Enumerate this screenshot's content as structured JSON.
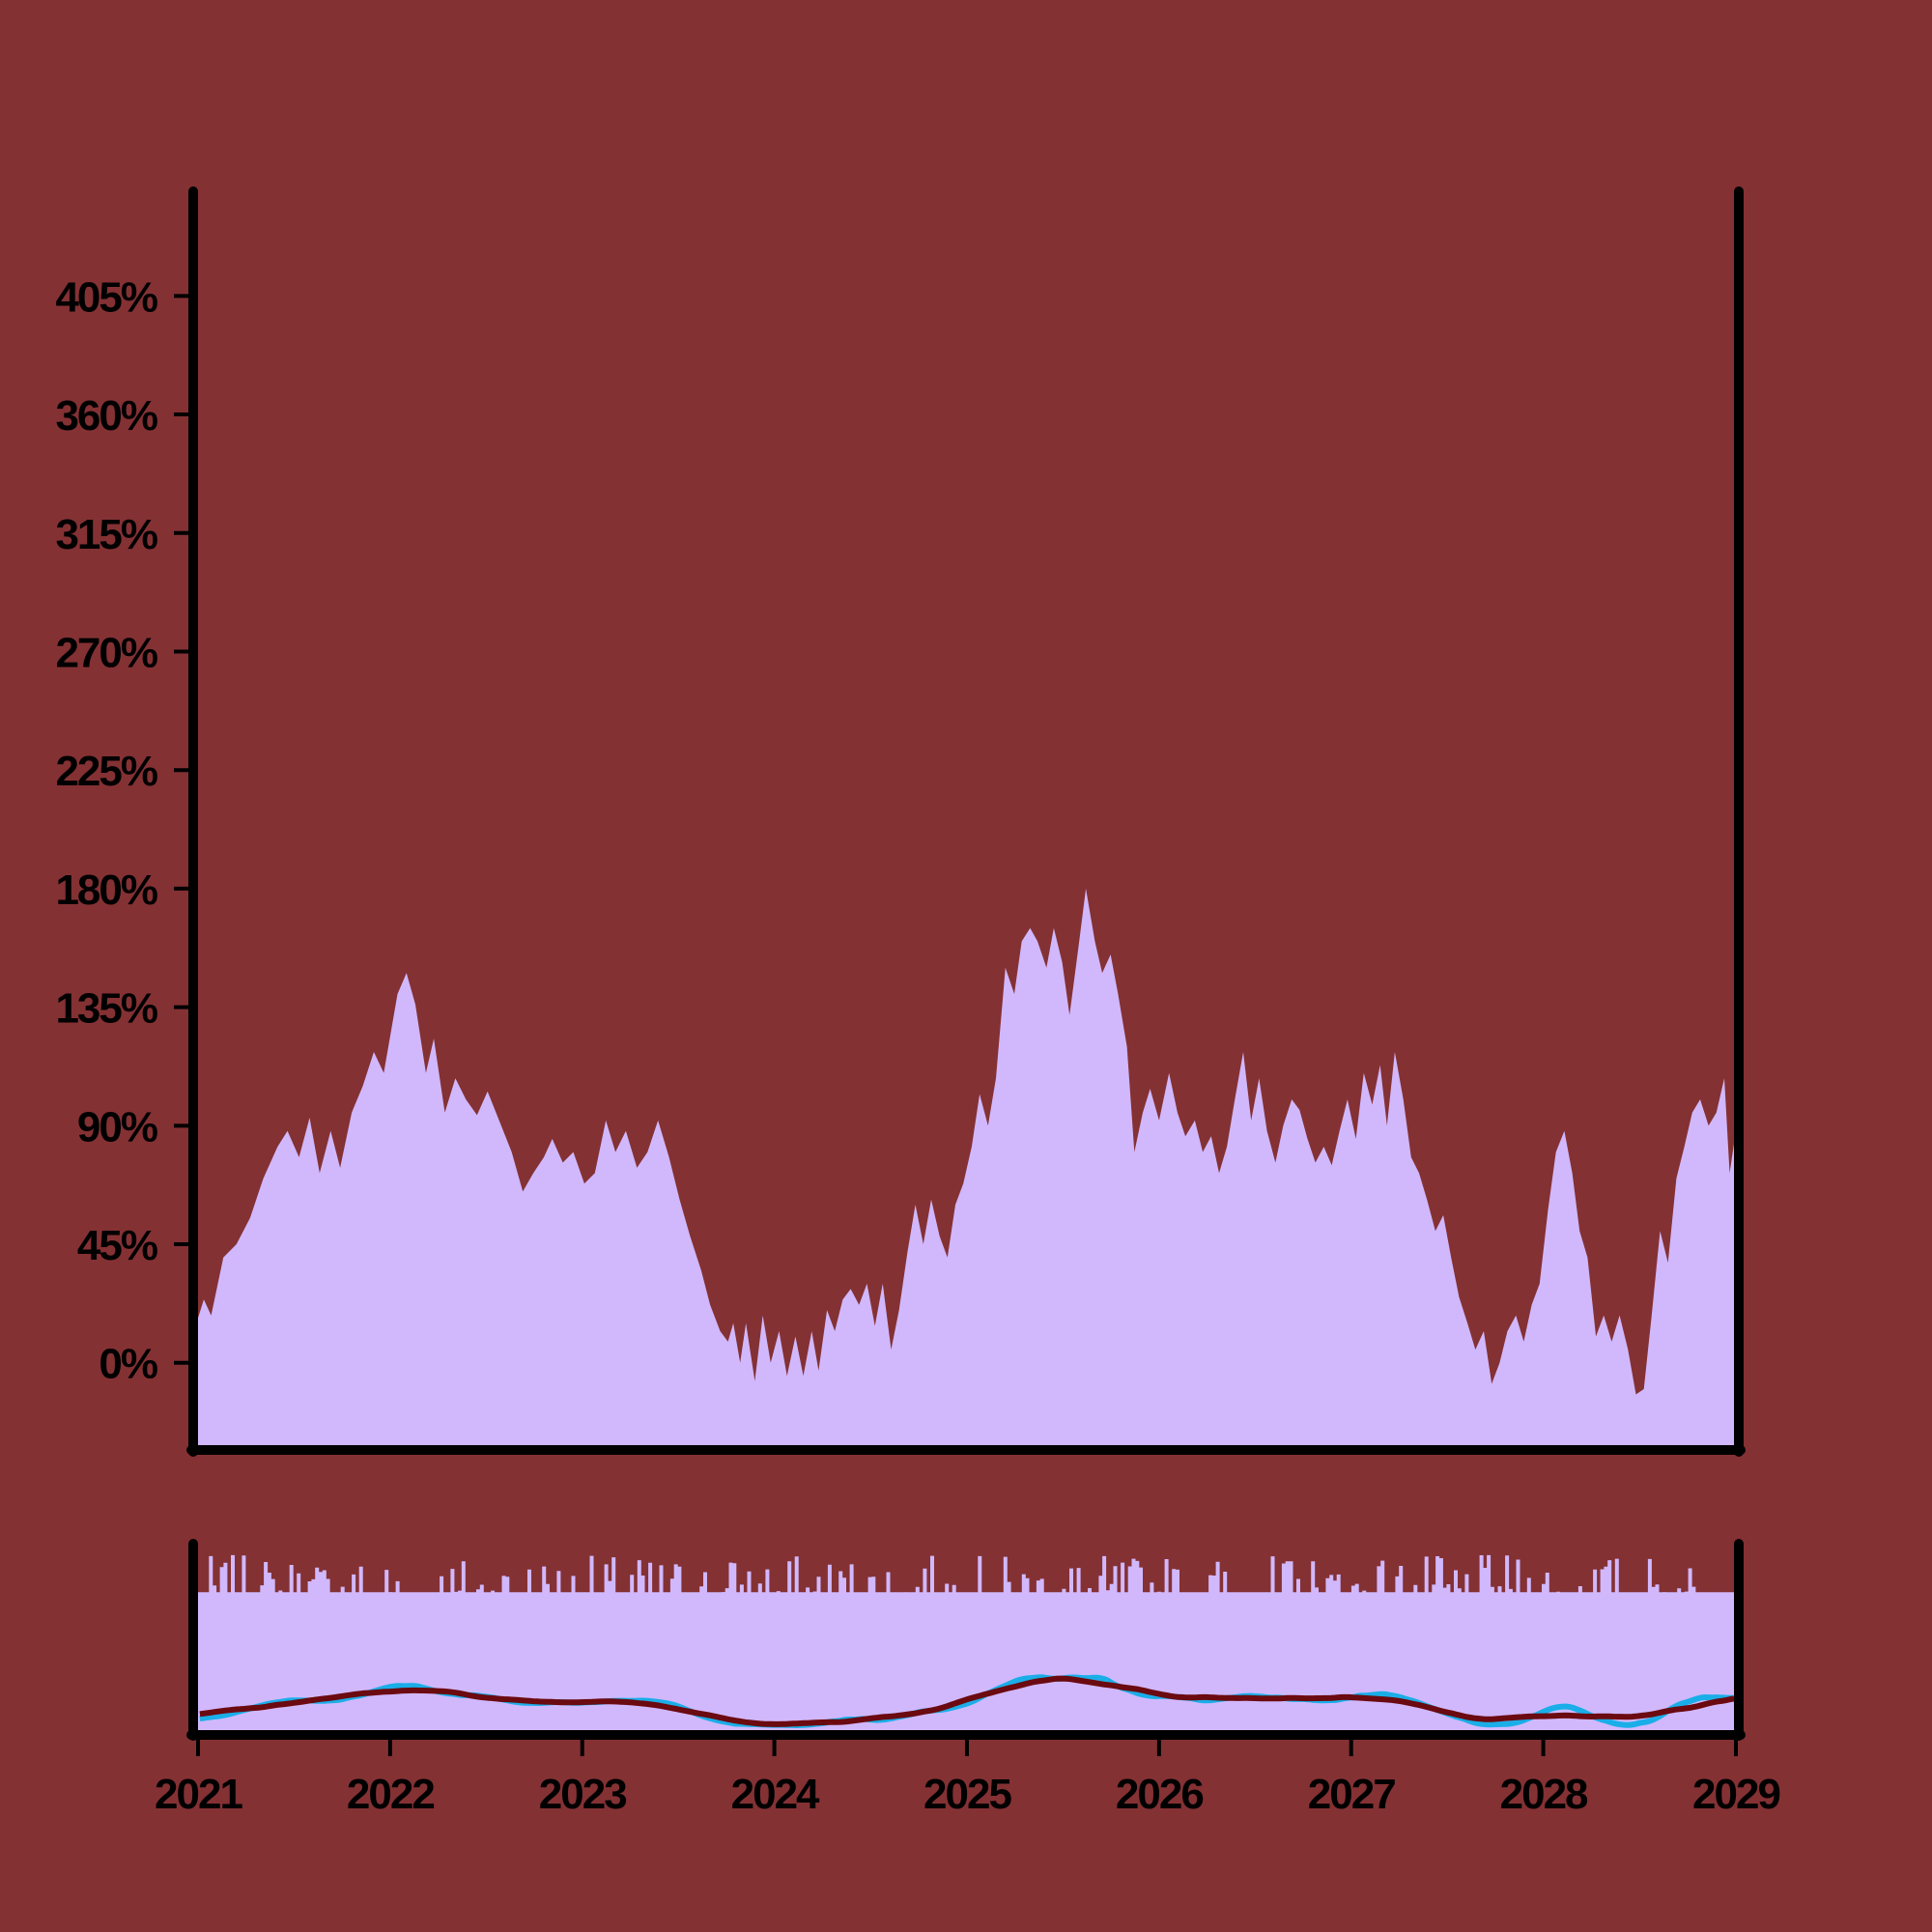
{
  "chart_data": {
    "type": "area",
    "title": "",
    "xlabel": "",
    "ylabel": "",
    "background_color": "#843134",
    "area_color": "#d1b8fc",
    "axis_color": "#000000",
    "ma_fast_color": "#1aaee8",
    "ma_slow_color": "#6b0a10",
    "xlim": [
      "2021-01-01",
      "2029-01-01"
    ],
    "ylim": [
      -32,
      444
    ],
    "y_ticks": [
      {
        "value": 0,
        "label": "0%"
      },
      {
        "value": 45,
        "label": "45%"
      },
      {
        "value": 90,
        "label": "90%"
      },
      {
        "value": 135,
        "label": "135%"
      },
      {
        "value": 180,
        "label": "180%"
      },
      {
        "value": 225,
        "label": "225%"
      },
      {
        "value": 270,
        "label": "270%"
      },
      {
        "value": 315,
        "label": "315%"
      },
      {
        "value": 360,
        "label": "360%"
      },
      {
        "value": 405,
        "label": "405%"
      }
    ],
    "x_ticks": [
      {
        "value": "2021-01-01",
        "label": "2021"
      },
      {
        "value": "2022-01-01",
        "label": "2022"
      },
      {
        "value": "2023-01-01",
        "label": "2023"
      },
      {
        "value": "2024-01-01",
        "label": "2024"
      },
      {
        "value": "2025-01-01",
        "label": "2025"
      },
      {
        "value": "2026-01-01",
        "label": "2026"
      },
      {
        "value": "2027-01-01",
        "label": "2027"
      },
      {
        "value": "2028-01-01",
        "label": "2028"
      },
      {
        "value": "2029-01-01",
        "label": "2029"
      }
    ],
    "series": [
      {
        "values_date_value": [
          [
            "2021-01-01",
            17
          ],
          [
            "2021-01-12",
            24
          ],
          [
            "2021-01-26",
            18
          ],
          [
            "2021-02-18",
            40
          ],
          [
            "2021-03-15",
            45
          ],
          [
            "2021-04-10",
            55
          ],
          [
            "2021-05-05",
            70
          ],
          [
            "2021-06-01",
            82
          ],
          [
            "2021-06-20",
            88
          ],
          [
            "2021-07-12",
            78
          ],
          [
            "2021-08-01",
            93
          ],
          [
            "2021-08-20",
            72
          ],
          [
            "2021-09-10",
            88
          ],
          [
            "2021-09-28",
            74
          ],
          [
            "2021-10-20",
            95
          ],
          [
            "2021-11-10",
            105
          ],
          [
            "2021-12-01",
            118
          ],
          [
            "2021-12-20",
            110
          ],
          [
            "2022-01-15",
            140
          ],
          [
            "2022-02-01",
            148
          ],
          [
            "2022-02-18",
            136
          ],
          [
            "2022-03-10",
            110
          ],
          [
            "2022-03-25",
            123
          ],
          [
            "2022-04-15",
            95
          ],
          [
            "2022-05-05",
            108
          ],
          [
            "2022-05-25",
            100
          ],
          [
            "2022-06-15",
            94
          ],
          [
            "2022-07-05",
            103
          ],
          [
            "2022-07-25",
            93
          ],
          [
            "2022-08-20",
            80
          ],
          [
            "2022-09-10",
            65
          ],
          [
            "2022-09-30",
            72
          ],
          [
            "2022-10-20",
            78
          ],
          [
            "2022-11-05",
            85
          ],
          [
            "2022-11-25",
            76
          ],
          [
            "2022-12-15",
            80
          ],
          [
            "2023-01-05",
            68
          ],
          [
            "2023-01-25",
            72
          ],
          [
            "2023-02-15",
            92
          ],
          [
            "2023-03-05",
            80
          ],
          [
            "2023-03-25",
            88
          ],
          [
            "2023-04-15",
            74
          ],
          [
            "2023-05-05",
            80
          ],
          [
            "2023-05-25",
            92
          ],
          [
            "2023-06-15",
            78
          ],
          [
            "2023-07-05",
            62
          ],
          [
            "2023-07-25",
            48
          ],
          [
            "2023-08-15",
            35
          ],
          [
            "2023-09-01",
            22
          ],
          [
            "2023-09-20",
            12
          ],
          [
            "2023-10-05",
            8
          ],
          [
            "2023-10-15",
            15
          ],
          [
            "2023-10-28",
            0
          ],
          [
            "2023-11-08",
            15
          ],
          [
            "2023-11-25",
            -7
          ],
          [
            "2023-12-10",
            18
          ],
          [
            "2023-12-25",
            0
          ],
          [
            "2024-01-10",
            12
          ],
          [
            "2024-01-25",
            -5
          ],
          [
            "2024-02-10",
            10
          ],
          [
            "2024-02-25",
            -5
          ],
          [
            "2024-03-12",
            12
          ],
          [
            "2024-03-25",
            -3
          ],
          [
            "2024-04-10",
            20
          ],
          [
            "2024-04-25",
            12
          ],
          [
            "2024-05-10",
            24
          ],
          [
            "2024-05-25",
            28
          ],
          [
            "2024-06-10",
            22
          ],
          [
            "2024-06-25",
            30
          ],
          [
            "2024-07-10",
            14
          ],
          [
            "2024-07-25",
            30
          ],
          [
            "2024-08-10",
            5
          ],
          [
            "2024-08-25",
            20
          ],
          [
            "2024-09-10",
            42
          ],
          [
            "2024-09-25",
            60
          ],
          [
            "2024-10-10",
            45
          ],
          [
            "2024-10-25",
            62
          ],
          [
            "2024-11-10",
            48
          ],
          [
            "2024-11-25",
            40
          ],
          [
            "2024-12-10",
            60
          ],
          [
            "2024-12-25",
            68
          ],
          [
            "2025-01-10",
            82
          ],
          [
            "2025-01-25",
            102
          ],
          [
            "2025-02-10",
            90
          ],
          [
            "2025-02-25",
            108
          ],
          [
            "2025-03-15",
            150
          ],
          [
            "2025-04-01",
            140
          ],
          [
            "2025-04-15",
            160
          ],
          [
            "2025-05-01",
            165
          ],
          [
            "2025-05-15",
            160
          ],
          [
            "2025-06-01",
            150
          ],
          [
            "2025-06-15",
            165
          ],
          [
            "2025-07-01",
            152
          ],
          [
            "2025-07-15",
            132
          ],
          [
            "2025-08-01",
            158
          ],
          [
            "2025-08-15",
            180
          ],
          [
            "2025-09-01",
            160
          ],
          [
            "2025-09-15",
            148
          ],
          [
            "2025-10-01",
            155
          ],
          [
            "2025-10-15",
            140
          ],
          [
            "2025-11-01",
            120
          ],
          [
            "2025-11-15",
            80
          ],
          [
            "2025-12-01",
            95
          ],
          [
            "2025-12-15",
            104
          ],
          [
            "2026-01-01",
            92
          ],
          [
            "2026-01-20",
            110
          ],
          [
            "2026-02-05",
            95
          ],
          [
            "2026-02-20",
            86
          ],
          [
            "2026-03-10",
            92
          ],
          [
            "2026-03-25",
            80
          ],
          [
            "2026-04-10",
            86
          ],
          [
            "2026-04-25",
            72
          ],
          [
            "2026-05-10",
            82
          ],
          [
            "2026-05-25",
            100
          ],
          [
            "2026-06-10",
            118
          ],
          [
            "2026-06-25",
            92
          ],
          [
            "2026-07-10",
            108
          ],
          [
            "2026-07-25",
            88
          ],
          [
            "2026-08-10",
            76
          ],
          [
            "2026-08-25",
            90
          ],
          [
            "2026-09-10",
            100
          ],
          [
            "2026-09-25",
            96
          ],
          [
            "2026-10-10",
            85
          ],
          [
            "2026-10-25",
            76
          ],
          [
            "2026-11-10",
            82
          ],
          [
            "2026-11-25",
            75
          ],
          [
            "2026-12-10",
            88
          ],
          [
            "2026-12-25",
            100
          ],
          [
            "2027-01-10",
            85
          ],
          [
            "2027-01-25",
            110
          ],
          [
            "2027-02-10",
            98
          ],
          [
            "2027-02-25",
            113
          ],
          [
            "2027-03-10",
            90
          ],
          [
            "2027-03-25",
            118
          ],
          [
            "2027-04-10",
            100
          ],
          [
            "2027-04-25",
            78
          ],
          [
            "2027-05-10",
            72
          ],
          [
            "2027-05-25",
            62
          ],
          [
            "2027-06-10",
            50
          ],
          [
            "2027-06-25",
            56
          ],
          [
            "2027-07-10",
            40
          ],
          [
            "2027-07-25",
            25
          ],
          [
            "2027-08-10",
            15
          ],
          [
            "2027-08-25",
            5
          ],
          [
            "2027-09-10",
            12
          ],
          [
            "2027-09-25",
            -8
          ],
          [
            "2027-10-10",
            0
          ],
          [
            "2027-10-25",
            12
          ],
          [
            "2027-11-10",
            18
          ],
          [
            "2027-11-25",
            8
          ],
          [
            "2027-12-10",
            22
          ],
          [
            "2027-12-25",
            30
          ],
          [
            "2028-01-10",
            58
          ],
          [
            "2028-01-25",
            80
          ],
          [
            "2028-02-10",
            88
          ],
          [
            "2028-02-25",
            72
          ],
          [
            "2028-03-10",
            50
          ],
          [
            "2028-03-25",
            40
          ],
          [
            "2028-04-10",
            10
          ],
          [
            "2028-04-25",
            18
          ],
          [
            "2028-05-10",
            8
          ],
          [
            "2028-05-25",
            18
          ],
          [
            "2028-06-10",
            5
          ],
          [
            "2028-06-25",
            -12
          ],
          [
            "2028-07-10",
            -10
          ],
          [
            "2028-07-25",
            18
          ],
          [
            "2028-08-10",
            50
          ],
          [
            "2028-08-25",
            38
          ],
          [
            "2028-09-10",
            70
          ],
          [
            "2028-09-25",
            82
          ],
          [
            "2028-10-10",
            95
          ],
          [
            "2028-10-25",
            100
          ],
          [
            "2028-11-10",
            90
          ],
          [
            "2028-11-25",
            95
          ],
          [
            "2028-12-10",
            108
          ],
          [
            "2028-12-20",
            72
          ],
          [
            "2029-01-01",
            88
          ]
        ]
      }
    ]
  }
}
